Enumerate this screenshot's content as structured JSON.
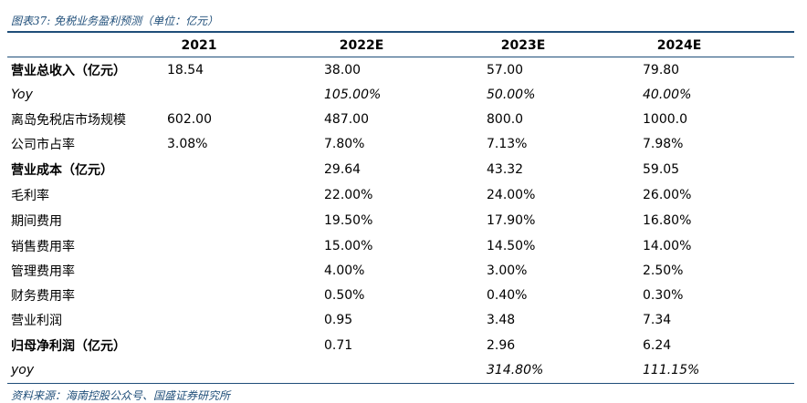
{
  "caption": "图表37: 免税业务盈利预测（单位：亿元）",
  "header": [
    "",
    "2021",
    "2022E",
    "2023E",
    "2024E"
  ],
  "rows": [
    {
      "label": "营业总收入（亿元）",
      "values": [
        "18.54",
        "38.00",
        "57.00",
        "79.80"
      ]
    },
    {
      "label": "Yoy",
      "values": [
        "",
        "105.00%",
        "50.00%",
        "40.00%"
      ]
    },
    {
      "label": "离岛免税店市场规模",
      "values": [
        "602.00",
        "487.00",
        "800.0",
        "1000.0"
      ]
    },
    {
      "label": "公司市占率",
      "values": [
        "3.08%",
        "7.80%",
        "7.13%",
        "7.98%"
      ]
    },
    {
      "label": "营业成本（亿元）",
      "values": [
        "",
        "29.64",
        "43.32",
        "59.05"
      ]
    },
    {
      "label": "毛利率",
      "values": [
        "",
        "22.00%",
        "24.00%",
        "26.00%"
      ]
    },
    {
      "label": "期间费用",
      "values": [
        "",
        "19.50%",
        "17.90%",
        "16.80%"
      ]
    },
    {
      "label": "销售费用率",
      "values": [
        "",
        "15.00%",
        "14.50%",
        "14.00%"
      ]
    },
    {
      "label": "管理费用率",
      "values": [
        "",
        "4.00%",
        "3.00%",
        "2.50%"
      ]
    },
    {
      "label": "财务费用率",
      "values": [
        "",
        "0.50%",
        "0.40%",
        "0.30%"
      ]
    },
    {
      "label": "营业利润",
      "values": [
        "",
        "0.95",
        "3.48",
        "7.34"
      ]
    },
    {
      "label": "归母净利润（亿元）",
      "values": [
        "",
        "0.71",
        "2.96",
        "6.24"
      ]
    },
    {
      "label": "yoy",
      "values": [
        "",
        "",
        "314.80%",
        "111.15%"
      ]
    }
  ],
  "source": "资料来源：海南控股公众号、国盛证券研究所"
}
